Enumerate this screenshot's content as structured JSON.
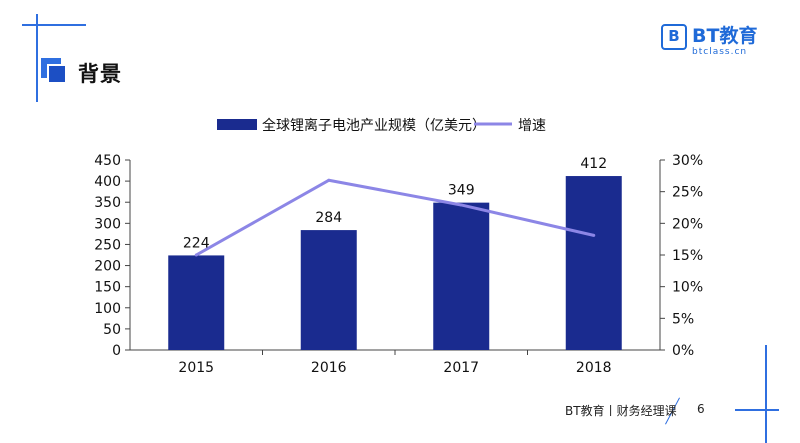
{
  "header": {
    "title": "背景"
  },
  "logo": {
    "name": "BT教育",
    "domain": "btclass.cn"
  },
  "footer": {
    "text": "BT教育丨财务经理课",
    "page": "6"
  },
  "colors": {
    "bar": "#1a2b8f",
    "line": "#8c86e6",
    "accent": "#2f6fe0"
  },
  "chart_data": {
    "type": "bar",
    "categories": [
      "2015",
      "2016",
      "2017",
      "2018"
    ],
    "series": [
      {
        "name": "全球锂离子电池产业规模（亿美元）",
        "type": "bar",
        "axis": "left",
        "values": [
          224,
          284,
          349,
          412
        ],
        "labels": [
          "224",
          "284",
          "349",
          "412"
        ]
      },
      {
        "name": "增速",
        "type": "line",
        "axis": "right",
        "values": [
          15.0,
          26.8,
          22.9,
          18.1
        ]
      }
    ],
    "y_left": {
      "min": 0,
      "max": 450,
      "ticks": [
        "0",
        "50",
        "100",
        "150",
        "200",
        "250",
        "300",
        "350",
        "400",
        "450"
      ]
    },
    "y_right": {
      "min": 0,
      "max": 30,
      "ticks": [
        "0%",
        "5%",
        "10%",
        "15%",
        "20%",
        "25%",
        "30%"
      ]
    },
    "legend_position": "top-center",
    "grid": false
  }
}
